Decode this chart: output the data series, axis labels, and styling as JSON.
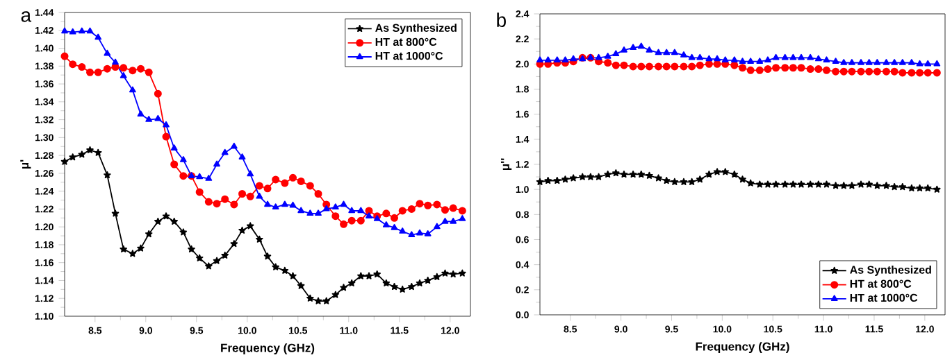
{
  "chart_data": [
    {
      "type": "line",
      "annotations": [
        "a"
      ],
      "xlabel": "Frequency (GHz)",
      "ylabel": "μ'",
      "legend": "top right",
      "line_style": "solid",
      "x": [
        8.2,
        8.28,
        8.37,
        8.45,
        8.53,
        8.62,
        8.7,
        8.78,
        8.87,
        8.95,
        9.03,
        9.12,
        9.2,
        9.28,
        9.37,
        9.45,
        9.53,
        9.62,
        9.7,
        9.78,
        9.87,
        9.95,
        10.03,
        10.12,
        10.2,
        10.28,
        10.37,
        10.45,
        10.53,
        10.62,
        10.7,
        10.78,
        10.87,
        10.95,
        11.03,
        11.12,
        11.2,
        11.28,
        11.37,
        11.45,
        11.53,
        11.62,
        11.7,
        11.78,
        11.87,
        11.95,
        12.03,
        12.12
      ],
      "xlim": [
        8.2,
        12.2
      ],
      "xticks": [
        8.5,
        {
          "value": 9,
          "label": "9.0"
        },
        9.5,
        {
          "value": 10,
          "label": "10.0"
        },
        10.5,
        {
          "value": 11,
          "label": "11.0"
        },
        11.5,
        {
          "value": 12,
          "label": "12.0"
        }
      ],
      "ylim": [
        1.1,
        1.44
      ],
      "yticks": [
        {
          "value": 1.1,
          "label": "1.10"
        },
        1.12,
        1.14,
        1.16,
        1.18,
        {
          "value": 1.2,
          "label": "1.20"
        },
        1.22,
        1.24,
        1.26,
        1.28,
        {
          "value": 1.3,
          "label": "1.30"
        },
        1.32,
        1.34,
        1.36,
        1.38,
        {
          "value": 1.4,
          "label": "1.40"
        },
        1.42,
        1.44
      ],
      "series": [
        {
          "name": "As Synthesized",
          "color": "#000000",
          "marker": "star",
          "values": [
            1.273,
            1.278,
            1.281,
            1.286,
            1.283,
            1.258,
            1.215,
            1.175,
            1.17,
            1.176,
            1.192,
            1.206,
            1.212,
            1.206,
            1.194,
            1.175,
            1.165,
            1.156,
            1.162,
            1.168,
            1.181,
            1.196,
            1.201,
            1.186,
            1.167,
            1.155,
            1.151,
            1.145,
            1.134,
            1.12,
            1.117,
            1.117,
            1.124,
            1.132,
            1.137,
            1.145,
            1.145,
            1.147,
            1.137,
            1.133,
            1.13,
            1.133,
            1.137,
            1.14,
            1.144,
            1.148,
            1.147,
            1.148
          ]
        },
        {
          "name": "HT at 800°C",
          "color": "#ff0000",
          "marker": "circle",
          "values": [
            1.391,
            1.382,
            1.379,
            1.373,
            1.373,
            1.377,
            1.379,
            1.378,
            1.375,
            1.377,
            1.373,
            1.349,
            1.301,
            1.27,
            1.257,
            1.257,
            1.239,
            1.228,
            1.226,
            1.231,
            1.225,
            1.237,
            1.234,
            1.246,
            1.243,
            1.253,
            1.249,
            1.255,
            1.251,
            1.246,
            1.237,
            1.225,
            1.212,
            1.203,
            1.207,
            1.207,
            1.218,
            1.212,
            1.215,
            1.21,
            1.218,
            1.22,
            1.226,
            1.224,
            1.225,
            1.219,
            1.221,
            1.218
          ]
        },
        {
          "name": "HT at 1000°C",
          "color": "#0000ff",
          "marker": "triangle",
          "values": [
            1.419,
            1.418,
            1.419,
            1.419,
            1.412,
            1.394,
            1.384,
            1.369,
            1.353,
            1.326,
            1.32,
            1.321,
            1.314,
            1.288,
            1.275,
            1.257,
            1.256,
            1.254,
            1.27,
            1.283,
            1.29,
            1.278,
            1.259,
            1.234,
            1.225,
            1.222,
            1.225,
            1.224,
            1.218,
            1.215,
            1.215,
            1.22,
            1.222,
            1.225,
            1.218,
            1.218,
            1.212,
            1.209,
            1.202,
            1.199,
            1.195,
            1.191,
            1.193,
            1.192,
            1.2,
            1.206,
            1.206,
            1.209
          ]
        }
      ]
    },
    {
      "type": "line",
      "annotations": [
        "b"
      ],
      "xlabel": "Frequency (GHz)",
      "ylabel": "μ''",
      "legend": "bottom right",
      "line_style": "solid",
      "x": [
        8.2,
        8.28,
        8.37,
        8.45,
        8.53,
        8.62,
        8.7,
        8.78,
        8.87,
        8.95,
        9.03,
        9.12,
        9.2,
        9.28,
        9.37,
        9.45,
        9.53,
        9.62,
        9.7,
        9.78,
        9.87,
        9.95,
        10.03,
        10.12,
        10.2,
        10.28,
        10.37,
        10.45,
        10.53,
        10.62,
        10.7,
        10.78,
        10.87,
        10.95,
        11.03,
        11.12,
        11.2,
        11.28,
        11.37,
        11.45,
        11.53,
        11.62,
        11.7,
        11.78,
        11.87,
        11.95,
        12.03,
        12.12
      ],
      "xlim": [
        8.2,
        12.2
      ],
      "xticks": [
        8.5,
        {
          "value": 9,
          "label": "9.0"
        },
        9.5,
        {
          "value": 10,
          "label": "10.0"
        },
        10.5,
        {
          "value": 11,
          "label": "11.0"
        },
        11.5,
        {
          "value": 12,
          "label": "12.0"
        }
      ],
      "ylim": [
        0,
        2.4
      ],
      "yticks": [
        {
          "value": 0,
          "label": "0.0"
        },
        0.2,
        0.4,
        0.6,
        0.8,
        {
          "value": 1,
          "label": "1.0"
        },
        1.2,
        1.4,
        1.6,
        1.8,
        {
          "value": 2,
          "label": "2.0"
        },
        2.2,
        2.4
      ],
      "series": [
        {
          "name": "As Synthesized",
          "color": "#000000",
          "marker": "star",
          "values": [
            1.06,
            1.07,
            1.07,
            1.08,
            1.09,
            1.1,
            1.1,
            1.1,
            1.12,
            1.13,
            1.12,
            1.12,
            1.12,
            1.11,
            1.09,
            1.07,
            1.06,
            1.06,
            1.06,
            1.08,
            1.12,
            1.14,
            1.14,
            1.12,
            1.08,
            1.05,
            1.04,
            1.04,
            1.04,
            1.04,
            1.04,
            1.04,
            1.04,
            1.04,
            1.04,
            1.03,
            1.03,
            1.03,
            1.04,
            1.04,
            1.03,
            1.03,
            1.02,
            1.02,
            1.01,
            1.01,
            1.01,
            1.0
          ]
        },
        {
          "name": "HT at 800°C",
          "color": "#ff0000",
          "marker": "circle",
          "values": [
            2.0,
            2.0,
            2.01,
            2.01,
            2.02,
            2.05,
            2.05,
            2.02,
            2.01,
            1.99,
            1.99,
            1.98,
            1.98,
            1.98,
            1.98,
            1.98,
            1.98,
            1.98,
            1.98,
            1.99,
            2.0,
            2.0,
            2.0,
            1.99,
            1.97,
            1.95,
            1.95,
            1.96,
            1.97,
            1.97,
            1.97,
            1.97,
            1.96,
            1.96,
            1.95,
            1.94,
            1.94,
            1.94,
            1.94,
            1.94,
            1.94,
            1.94,
            1.94,
            1.93,
            1.93,
            1.93,
            1.93,
            1.93
          ]
        },
        {
          "name": "HT at 1000°C",
          "color": "#0000ff",
          "marker": "triangle",
          "values": [
            2.03,
            2.03,
            2.03,
            2.03,
            2.04,
            2.04,
            2.05,
            2.05,
            2.06,
            2.08,
            2.11,
            2.13,
            2.14,
            2.11,
            2.09,
            2.09,
            2.09,
            2.07,
            2.05,
            2.05,
            2.04,
            2.04,
            2.03,
            2.03,
            2.02,
            2.02,
            2.02,
            2.03,
            2.05,
            2.05,
            2.05,
            2.05,
            2.05,
            2.04,
            2.03,
            2.02,
            2.01,
            2.01,
            2.01,
            2.01,
            2.01,
            2.01,
            2.01,
            2.01,
            2.01,
            2.0,
            2.0,
            2.0
          ]
        }
      ]
    }
  ]
}
